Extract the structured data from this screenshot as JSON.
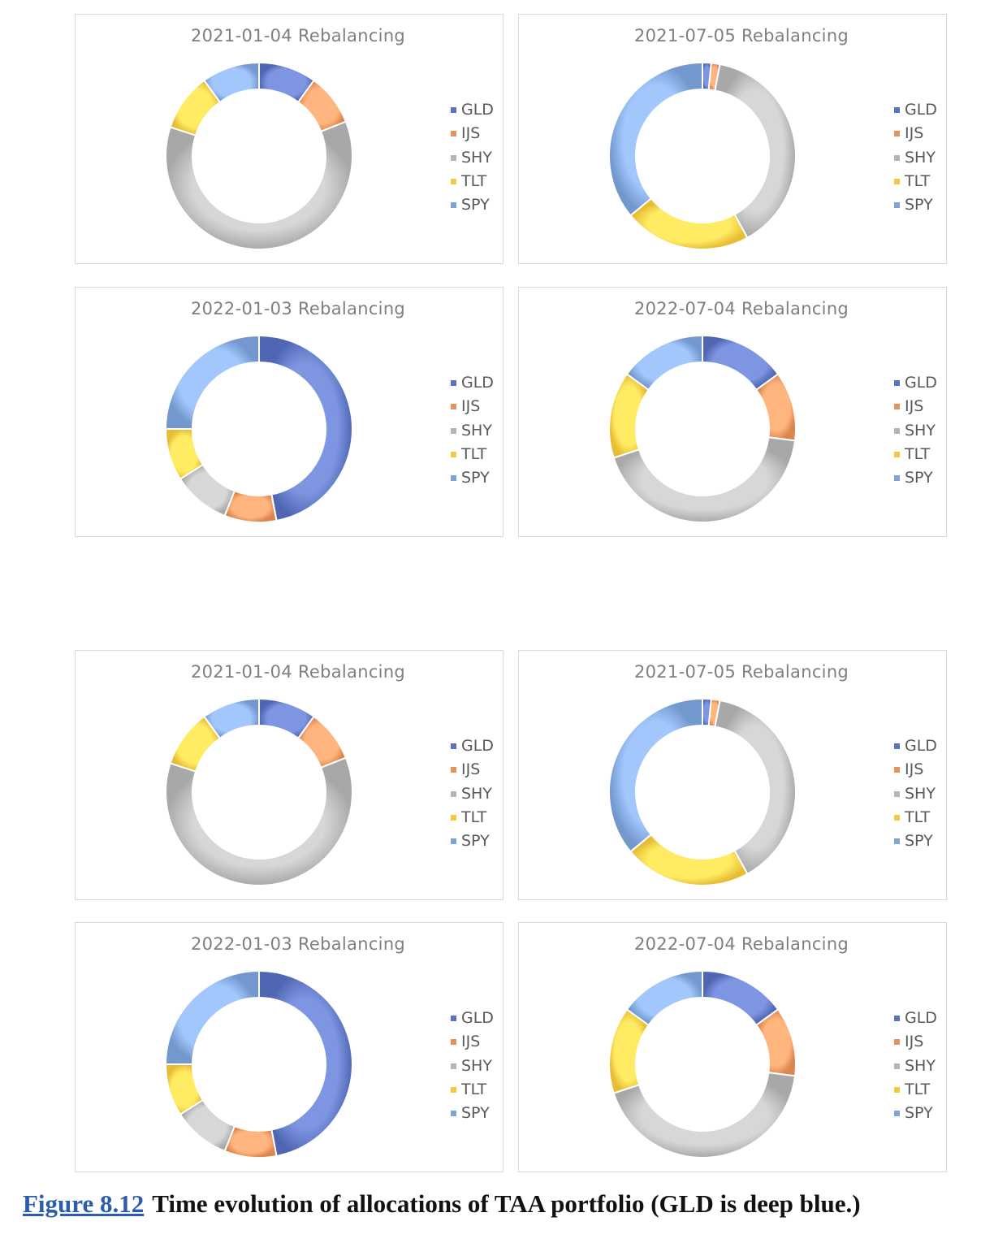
{
  "colors": {
    "GLD": "#5b73bf",
    "IJS": "#e8925a",
    "SHY": "#b4b4b4",
    "TLT": "#f3c940",
    "SPY": "#7fa4da"
  },
  "chart_data": [
    {
      "type": "pie",
      "title": "2021-01-04 Rebalancing",
      "categories": [
        "GLD",
        "IJS",
        "SHY",
        "TLT",
        "SPY"
      ],
      "values": [
        10,
        9,
        61,
        10,
        10
      ],
      "legend": "right"
    },
    {
      "type": "pie",
      "title": "2021-07-05 Rebalancing",
      "categories": [
        "GLD",
        "IJS",
        "SHY",
        "TLT",
        "SPY"
      ],
      "values": [
        1.5,
        1.5,
        39,
        22,
        36
      ],
      "legend": "right"
    },
    {
      "type": "pie",
      "title": "2022-01-03 Rebalancing",
      "categories": [
        "GLD",
        "IJS",
        "SHY",
        "TLT",
        "SPY"
      ],
      "values": [
        47,
        9,
        10,
        9,
        25
      ],
      "legend": "right"
    },
    {
      "type": "pie",
      "title": "2022-07-04 Rebalancing",
      "categories": [
        "GLD",
        "IJS",
        "SHY",
        "TLT",
        "SPY"
      ],
      "values": [
        15,
        12,
        43,
        15,
        15
      ],
      "legend": "right"
    },
    {
      "type": "pie",
      "title": "2021-01-04 Rebalancing",
      "categories": [
        "GLD",
        "IJS",
        "SHY",
        "TLT",
        "SPY"
      ],
      "values": [
        10,
        9,
        61,
        10,
        10
      ],
      "legend": "right"
    },
    {
      "type": "pie",
      "title": "2021-07-05 Rebalancing",
      "categories": [
        "GLD",
        "IJS",
        "SHY",
        "TLT",
        "SPY"
      ],
      "values": [
        1.5,
        1.5,
        39,
        22,
        36
      ],
      "legend": "right"
    },
    {
      "type": "pie",
      "title": "2022-01-03 Rebalancing",
      "categories": [
        "GLD",
        "IJS",
        "SHY",
        "TLT",
        "SPY"
      ],
      "values": [
        47,
        9,
        10,
        9,
        25
      ],
      "legend": "right"
    },
    {
      "type": "pie",
      "title": "2022-07-04 Rebalancing",
      "categories": [
        "GLD",
        "IJS",
        "SHY",
        "TLT",
        "SPY"
      ],
      "values": [
        15,
        12,
        43,
        15,
        15
      ],
      "legend": "right"
    }
  ],
  "caption": {
    "figure_label": "Figure 8.12",
    "text": "Time evolution of allocations of TAA portfolio (GLD is deep blue.)"
  }
}
